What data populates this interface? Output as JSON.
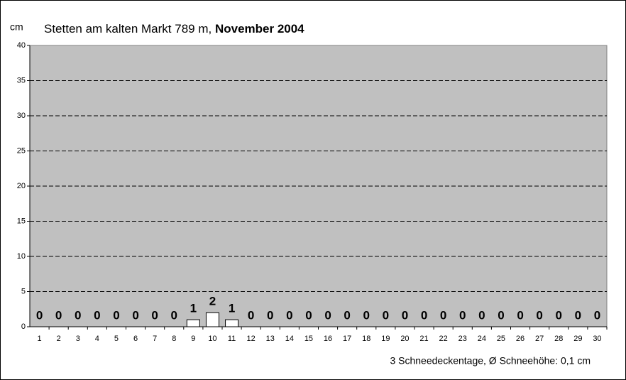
{
  "chart_data": {
    "type": "bar",
    "title": "Stetten am kalten Markt 789 m,",
    "title_bold": "November 2004",
    "y_label": "cm",
    "footer": "3 Schneedeckentage, Ø Schneehöhe:  0,1 cm",
    "categories": [
      "1",
      "2",
      "3",
      "4",
      "5",
      "6",
      "7",
      "8",
      "9",
      "10",
      "11",
      "12",
      "13",
      "14",
      "15",
      "16",
      "17",
      "18",
      "19",
      "20",
      "21",
      "22",
      "23",
      "24",
      "25",
      "26",
      "27",
      "28",
      "29",
      "30"
    ],
    "values": [
      0,
      0,
      0,
      0,
      0,
      0,
      0,
      0,
      1,
      2,
      1,
      0,
      0,
      0,
      0,
      0,
      0,
      0,
      0,
      0,
      0,
      0,
      0,
      0,
      0,
      0,
      0,
      0,
      0,
      0
    ],
    "color": "#ffffff",
    "plot_background": "#c0c0c0",
    "ylim": [
      0,
      40
    ],
    "yticks": [
      0,
      5,
      10,
      15,
      20,
      25,
      30,
      35,
      40
    ],
    "grid": true
  }
}
